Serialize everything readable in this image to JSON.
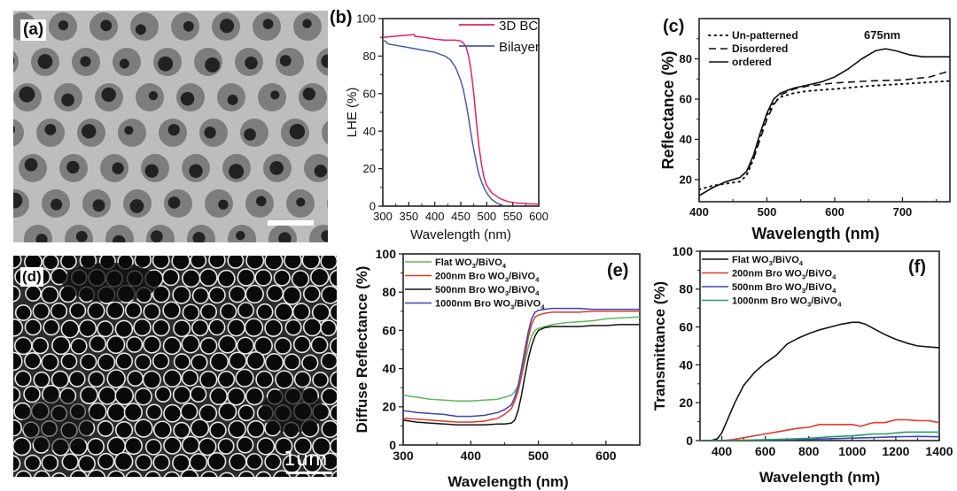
{
  "figure": {
    "panel_a": {
      "label": "(a)"
    },
    "panel_d": {
      "label": "(d)",
      "scale_bar": "1um"
    }
  },
  "colors": {
    "red_3dbc": "#e0245e",
    "blue_bilayer": "#4a5aa8",
    "green": "#5cb85c",
    "red": "#e0392b",
    "black": "#111111",
    "blue": "#3a45b0",
    "teal": "#2a9a6a"
  },
  "chart_data": [
    {
      "id": "b",
      "panel_label": "(b)",
      "type": "line",
      "xlabel": "Wavelength (nm)",
      "ylabel": "LHE (%)",
      "xlim": [
        300,
        600
      ],
      "ylim": [
        0,
        100
      ],
      "xticks": [
        "300",
        "350",
        "400",
        "450",
        "500",
        "550",
        "600"
      ],
      "yticks": [
        "0",
        "20",
        "40",
        "60",
        "80",
        "100"
      ],
      "legend_position": "top-right",
      "series": [
        {
          "name": "3D BC",
          "color": "#e0245e",
          "x": [
            300,
            320,
            340,
            360,
            362,
            380,
            400,
            420,
            440,
            450,
            455,
            460,
            465,
            470,
            475,
            480,
            485,
            490,
            495,
            500,
            510,
            520,
            530,
            540,
            550,
            560,
            570,
            580,
            590,
            600
          ],
          "y": [
            90,
            90.5,
            91,
            91.5,
            90.5,
            90,
            89,
            88.5,
            88.5,
            88,
            87,
            85,
            80,
            72,
            60,
            45,
            32,
            22,
            15,
            11,
            7,
            5,
            3.5,
            2.5,
            2,
            1.5,
            1.5,
            1.2,
            1.2,
            1
          ]
        },
        {
          "name": "Bilayer",
          "color": "#4a5aa8",
          "x": [
            300,
            305,
            310,
            320,
            340,
            360,
            380,
            400,
            420,
            430,
            440,
            450,
            455,
            460,
            465,
            470,
            475,
            480,
            485,
            490,
            495,
            500,
            505,
            510,
            515,
            520,
            525,
            530,
            535
          ],
          "y": [
            88,
            88,
            86.5,
            86,
            85,
            84,
            83,
            82,
            80,
            78,
            74,
            67,
            62,
            55,
            47,
            38,
            30,
            23,
            17,
            13,
            9.5,
            7,
            5,
            3.5,
            2.5,
            1.5,
            1,
            0.5,
            0
          ]
        }
      ]
    },
    {
      "id": "c",
      "panel_label": "(c)",
      "type": "line",
      "xlabel": "Wavelength (nm)",
      "ylabel": "Reflectance (%)",
      "xlim": [
        400,
        770
      ],
      "ylim": [
        9,
        100
      ],
      "xticks": [
        "400",
        "500",
        "600",
        "700"
      ],
      "yticks": [
        "20",
        "40",
        "60",
        "80"
      ],
      "annotation": "675nm",
      "legend_position": "top-left",
      "series": [
        {
          "name": "Un-patterned",
          "style": "dotted",
          "x": [
            400,
            420,
            440,
            460,
            470,
            480,
            490,
            500,
            510,
            520,
            540,
            560,
            600,
            650,
            700,
            770
          ],
          "y": [
            15,
            17,
            18,
            19,
            22,
            30,
            42,
            52,
            58,
            61,
            63,
            64,
            65,
            66.5,
            67.5,
            69
          ]
        },
        {
          "name": "Disordered",
          "style": "dashed",
          "x": [
            400,
            420,
            440,
            460,
            470,
            480,
            490,
            500,
            510,
            520,
            540,
            560,
            600,
            650,
            700,
            740,
            770
          ],
          "y": [
            12,
            16,
            19,
            21,
            24,
            30,
            40,
            50,
            57,
            62,
            65,
            66.5,
            68,
            69,
            69.5,
            71,
            74
          ]
        },
        {
          "name": "ordered",
          "style": "solid",
          "x": [
            400,
            420,
            440,
            460,
            470,
            480,
            490,
            500,
            510,
            520,
            540,
            560,
            580,
            600,
            620,
            640,
            660,
            675,
            690,
            710,
            730,
            750,
            770
          ],
          "y": [
            12,
            16,
            19,
            21,
            24,
            32,
            43,
            53,
            60,
            63,
            65.5,
            67,
            68.5,
            71,
            75,
            80,
            84,
            85,
            84,
            82,
            81,
            81,
            81
          ]
        }
      ]
    },
    {
      "id": "e",
      "panel_label": "(e)",
      "type": "line",
      "xlabel": "Wavelength (nm)",
      "ylabel": "Diffuse Reflectance (%)",
      "xlim": [
        300,
        650
      ],
      "ylim": [
        0,
        100
      ],
      "xticks": [
        "300",
        "400",
        "500",
        "600"
      ],
      "yticks": [
        "0",
        "20",
        "40",
        "60",
        "80",
        "100"
      ],
      "legend_position": "top-left",
      "series": [
        {
          "name": "Flat WO3/BiVO4",
          "label_main": "Flat WO",
          "sub1": "3",
          "mid": "/BiVO",
          "sub2": "4",
          "color": "#5cb85c",
          "x": [
            300,
            320,
            340,
            360,
            380,
            400,
            420,
            440,
            450,
            460,
            465,
            470,
            475,
            480,
            485,
            490,
            495,
            500,
            510,
            520,
            540,
            560,
            580,
            600,
            620,
            650
          ],
          "y": [
            26,
            25,
            24,
            23.5,
            23,
            23,
            23.5,
            24,
            25,
            26,
            28,
            31,
            36,
            43,
            51,
            57,
            60,
            61,
            62,
            63,
            64,
            64.5,
            65,
            66,
            66.5,
            67
          ]
        },
        {
          "name": "200nm Bro WO3/BiVO4",
          "label_main": "200nm Bro WO",
          "sub1": "3",
          "mid": "/BiVO",
          "sub2": "4",
          "color": "#e0392b",
          "x": [
            300,
            320,
            340,
            360,
            380,
            400,
            420,
            440,
            450,
            460,
            465,
            470,
            475,
            480,
            485,
            490,
            495,
            500,
            510,
            520,
            540,
            560,
            580,
            600,
            620,
            650
          ],
          "y": [
            14,
            13.5,
            13,
            12.5,
            12,
            12,
            12.5,
            14,
            16,
            19,
            23,
            28,
            36,
            46,
            56,
            63,
            67,
            68,
            69,
            69.5,
            69.5,
            69.5,
            70,
            70,
            70,
            70
          ]
        },
        {
          "name": "500nm Bro WO3/BiVO4",
          "label_main": "500nm Bro WO",
          "sub1": "3",
          "mid": "/BiVO",
          "sub2": "4",
          "color": "#111111",
          "x": [
            300,
            320,
            340,
            360,
            380,
            400,
            420,
            440,
            450,
            460,
            465,
            470,
            475,
            480,
            485,
            490,
            495,
            500,
            510,
            520,
            540,
            560,
            580,
            600,
            620,
            650
          ],
          "y": [
            13,
            12,
            11.5,
            11,
            10.5,
            10.5,
            10.5,
            11,
            11,
            11.5,
            13,
            18,
            26,
            36,
            45,
            52,
            57,
            60,
            61.5,
            62,
            62,
            62,
            62.5,
            62.5,
            63,
            63
          ]
        },
        {
          "name": "1000nm Bro WO3/BiVO4",
          "label_main": "1000nm Bro WO",
          "sub1": "3",
          "mid": "/BiVO",
          "sub2": "4",
          "color": "#3a45b0",
          "x": [
            300,
            320,
            340,
            360,
            380,
            400,
            420,
            440,
            450,
            460,
            465,
            470,
            475,
            480,
            485,
            490,
            495,
            500,
            510,
            520,
            540,
            560,
            580,
            600,
            620,
            650
          ],
          "y": [
            18,
            17,
            16.5,
            16,
            15,
            15,
            15.5,
            17,
            18.5,
            21,
            25,
            31,
            40,
            50,
            59,
            66,
            69.5,
            70.5,
            71,
            71.5,
            71.5,
            71.5,
            71,
            71,
            71,
            71
          ]
        }
      ]
    },
    {
      "id": "f",
      "panel_label": "(f)",
      "type": "line",
      "xlabel": "Wavelength (nm)",
      "ylabel": "Transmittance (%)",
      "xlim": [
        300,
        1400
      ],
      "ylim": [
        0,
        100
      ],
      "xticks": [
        "400",
        "600",
        "800",
        "1000",
        "1200",
        "1400"
      ],
      "yticks": [
        "0",
        "20",
        "40",
        "60",
        "80",
        "100"
      ],
      "legend_position": "top-left",
      "series": [
        {
          "name": "Flat WO3/BiVO4",
          "label_main": "Flat WO",
          "sub1": "3",
          "mid": "/BiVO",
          "sub2": "4",
          "color": "#111111",
          "x": [
            300,
            350,
            380,
            400,
            430,
            460,
            500,
            550,
            600,
            650,
            700,
            750,
            800,
            850,
            900,
            950,
            1000,
            1030,
            1060,
            1100,
            1150,
            1200,
            1250,
            1300,
            1350,
            1400
          ],
          "y": [
            0,
            0,
            1,
            4,
            12,
            20,
            29,
            36,
            41,
            45,
            51,
            54,
            56.5,
            58.5,
            60,
            61.5,
            62.5,
            62.5,
            61.5,
            59,
            56,
            53.5,
            51.5,
            50,
            49.5,
            49
          ]
        },
        {
          "name": "200nm Bro WO3/BiVO4",
          "label_main": "200nm Bro WO",
          "sub1": "3",
          "mid": "/BiVO",
          "sub2": "4",
          "color": "#e0392b",
          "x": [
            300,
            400,
            450,
            500,
            550,
            600,
            650,
            700,
            750,
            800,
            850,
            900,
            950,
            1000,
            1040,
            1080,
            1100,
            1150,
            1200,
            1250,
            1300,
            1350,
            1400
          ],
          "y": [
            0,
            0,
            0.5,
            1.5,
            2.5,
            3.5,
            4.5,
            5.5,
            6.5,
            7,
            8.5,
            8.5,
            8.5,
            8.5,
            7.5,
            9,
            9.5,
            9.5,
            11,
            11,
            10.5,
            10.5,
            9.5
          ]
        },
        {
          "name": "500nm Bro WO3/BiVO4",
          "label_main": "500nm Bro WO",
          "sub1": "3",
          "mid": "/BiVO",
          "sub2": "4",
          "color": "#3a45b0",
          "x": [
            300,
            400,
            500,
            600,
            700,
            800,
            900,
            1000,
            1100,
            1200,
            1300,
            1400
          ],
          "y": [
            0,
            0,
            0,
            0.2,
            0.4,
            0.7,
            1,
            1.3,
            1.6,
            2,
            2.2,
            2
          ]
        },
        {
          "name": "1000nm Bro WO3/BiVO4",
          "label_main": "1000nm Bro WO",
          "sub1": "3",
          "mid": "/BiVO",
          "sub2": "4",
          "color": "#2a9a6a",
          "x": [
            300,
            400,
            500,
            600,
            700,
            800,
            900,
            1000,
            1050,
            1100,
            1150,
            1200,
            1250,
            1300,
            1350,
            1400
          ],
          "y": [
            0,
            0,
            0.2,
            0.5,
            0.8,
            1.2,
            2,
            2.5,
            3,
            3.5,
            3.5,
            4,
            4.5,
            4.5,
            4.5,
            4.5
          ]
        }
      ]
    }
  ]
}
